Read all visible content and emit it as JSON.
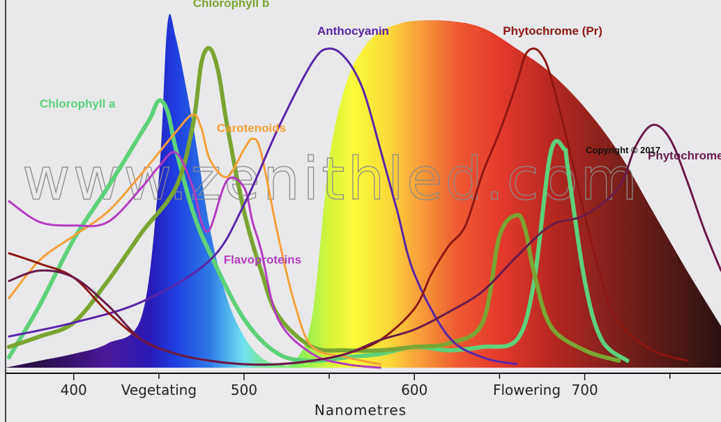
{
  "chart_data": {
    "type": "line",
    "xlabel": "Nanometres",
    "x_ticks": [
      400,
      500,
      600,
      700
    ],
    "xlim": [
      360,
      780
    ],
    "ylim": [
      0,
      100
    ],
    "region_labels": [
      {
        "text": "Vegetating",
        "x": 450
      },
      {
        "text": "Flowering",
        "x": 666
      }
    ],
    "watermark": "www.zenithled.com",
    "copyright": "Copyright © 2017",
    "background_spectrum": {
      "x": [
        360,
        380,
        400,
        420,
        440,
        450,
        455,
        460,
        470,
        480,
        490,
        500,
        510,
        520,
        530,
        540,
        550,
        560,
        570,
        580,
        590,
        600,
        620,
        640,
        660,
        680,
        700,
        720,
        740,
        760,
        780
      ],
      "values": [
        0,
        2,
        4,
        7,
        15,
        55,
        99,
        95,
        70,
        40,
        20,
        9,
        3,
        1,
        2,
        15,
        60,
        82,
        92,
        97,
        99,
        100,
        100,
        98,
        92,
        85,
        75,
        62,
        45,
        28,
        12
      ]
    },
    "series": [
      {
        "name": "Chlorophyll a",
        "color": "#5ed17a",
        "width": 6,
        "x": [
          362,
          380,
          400,
          420,
          440,
          445,
          450,
          455,
          460,
          470,
          480,
          500,
          520,
          540,
          560,
          580,
          600,
          620,
          640,
          660,
          670,
          680,
          688,
          690,
          700,
          710,
          725
        ],
        "values": [
          3,
          18,
          37,
          52,
          68,
          72,
          77,
          74,
          63,
          45,
          33,
          14,
          4,
          2,
          3,
          4,
          6,
          5,
          6,
          8,
          24,
          62,
          63,
          58,
          25,
          8,
          2
        ]
      },
      {
        "name": "Chlorophyll b",
        "color": "#7ba533",
        "width": 6,
        "x": [
          362,
          380,
          400,
          420,
          440,
          460,
          470,
          475,
          480,
          485,
          490,
          500,
          510,
          520,
          540,
          560,
          580,
          600,
          620,
          640,
          650,
          660,
          665,
          670,
          680,
          700,
          720
        ],
        "values": [
          6,
          9,
          13,
          25,
          39,
          52,
          70,
          88,
          92,
          85,
          70,
          45,
          28,
          15,
          6,
          5,
          5,
          6,
          7,
          13,
          38,
          44,
          40,
          28,
          12,
          5,
          2
        ]
      },
      {
        "name": "Carotenoids",
        "color": "#f5a03a",
        "width": 3,
        "x": [
          362,
          380,
          400,
          420,
          440,
          460,
          470,
          475,
          480,
          490,
          500,
          505,
          510,
          520,
          530,
          540,
          560,
          580
        ],
        "values": [
          20,
          31,
          38,
          45,
          56,
          68,
          73,
          69,
          60,
          55,
          63,
          66,
          62,
          38,
          18,
          6,
          3,
          1
        ]
      },
      {
        "name": "Flavoproteins",
        "color": "#b33cc0",
        "width": 3,
        "x": [
          362,
          380,
          400,
          420,
          440,
          450,
          460,
          470,
          475,
          480,
          490,
          500,
          505,
          510,
          520,
          540,
          560,
          580
        ],
        "values": [
          48,
          42,
          41,
          42,
          52,
          58,
          62,
          52,
          42,
          40,
          54,
          52,
          42,
          34,
          14,
          4,
          1,
          0
        ]
      },
      {
        "name": "Anthocyanin",
        "color": "#5a25a8",
        "width": 3,
        "x": [
          362,
          400,
          440,
          480,
          500,
          520,
          540,
          550,
          560,
          570,
          580,
          590,
          600,
          620,
          640,
          660
        ],
        "values": [
          9,
          13,
          19,
          31,
          47,
          69,
          88,
          92,
          89,
          80,
          63,
          45,
          27,
          9,
          3,
          1
        ]
      },
      {
        "name": "Phytochrome (Pr)",
        "color": "#8e1712",
        "width": 3,
        "x": [
          362,
          380,
          400,
          420,
          440,
          460,
          480,
          500,
          520,
          540,
          560,
          580,
          600,
          610,
          620,
          630,
          640,
          650,
          660,
          665,
          670,
          675,
          680,
          690,
          700,
          710,
          720,
          740,
          760
        ],
        "values": [
          33,
          30,
          26,
          16,
          8,
          4,
          2,
          1,
          1,
          2,
          4,
          8,
          17,
          27,
          35,
          41,
          56,
          68,
          82,
          90,
          92,
          90,
          84,
          65,
          44,
          25,
          13,
          5,
          2
        ]
      },
      {
        "name": "Phytochrome (Pfr)",
        "color": "#6a1a4a",
        "width": 3,
        "x": [
          362,
          380,
          400,
          420,
          440,
          460,
          480,
          500,
          520,
          540,
          560,
          580,
          600,
          620,
          640,
          660,
          680,
          700,
          720,
          730,
          740,
          750,
          760,
          770,
          780
        ],
        "values": [
          25,
          28,
          26,
          18,
          8,
          4,
          2,
          1,
          1,
          2,
          4,
          8,
          11,
          16,
          22,
          32,
          41,
          44,
          52,
          64,
          70,
          66,
          54,
          40,
          28
        ]
      }
    ],
    "label_positions": [
      {
        "name": "Chlorophyll a",
        "x": 380,
        "y": 75
      },
      {
        "name": "Chlorophyll b",
        "x": 470,
        "y": 104
      },
      {
        "name": "Carotenoids",
        "x": 484,
        "y": 68
      },
      {
        "name": "Flavoproteins",
        "x": 488,
        "y": 30
      },
      {
        "name": "Anthocyanin",
        "x": 543,
        "y": 96
      },
      {
        "name": "Phytochrome (Pr)",
        "x": 652,
        "y": 96
      },
      {
        "name": "Phytochrome (Pfr)",
        "x": 737,
        "y": 60
      }
    ]
  }
}
